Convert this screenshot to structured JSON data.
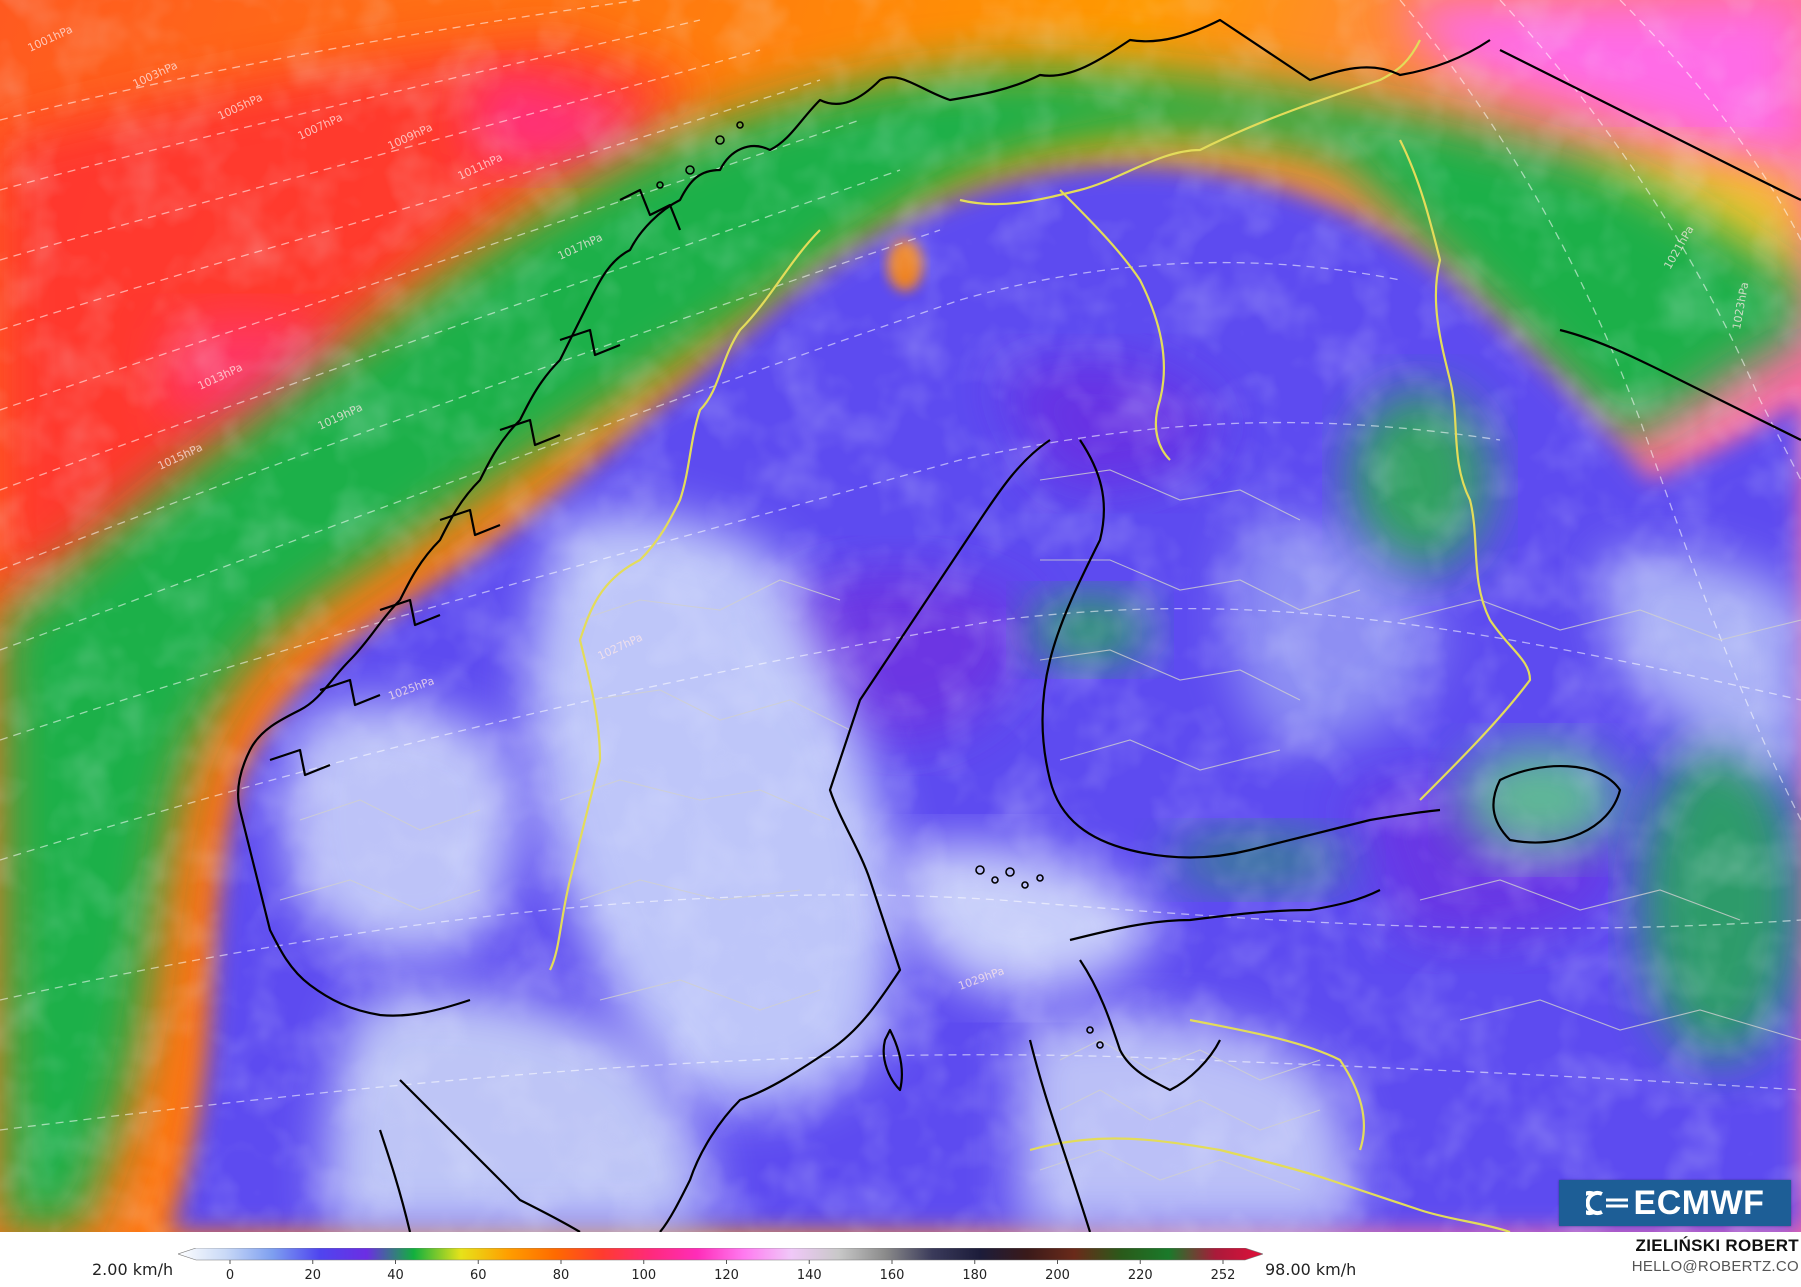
{
  "map": {
    "field": "wind speed",
    "units": "km/h",
    "model_logo": "ECMWF",
    "isobar_labels": [
      "1001hPa",
      "1003hPa",
      "1005hPa",
      "1007hPa",
      "1009hPa",
      "1011hPa",
      "1013hPa",
      "1015hPa",
      "1017hPa",
      "1019hPa",
      "1021hPa",
      "1023hPa",
      "1025hPa",
      "1027hPa",
      "1029hPa"
    ],
    "colors": {
      "calm": "#dbe7fb",
      "light": "#8aa8f0",
      "moderate": "#5a4ef0",
      "fresh": "#7a2fe8",
      "green": "#22b04a",
      "yellow": "#e8d81a",
      "orange": "#ff7a00",
      "red": "#ff3a3a",
      "magenta": "#ff2fa8",
      "pink": "#ff8af0",
      "border_country": "#e8e060",
      "coast": "#000000",
      "admin": "#bdbdbd"
    }
  },
  "colorbar": {
    "min_label": "2.00 km/h",
    "max_label": "98.00 km/h",
    "ticks": [
      "0",
      "20",
      "40",
      "60",
      "80",
      "100",
      "120",
      "140",
      "160",
      "180",
      "200",
      "220",
      "252"
    ],
    "stops": [
      "#ffffff",
      "#c9d9f6",
      "#7e9ff0",
      "#4f45ef",
      "#6b2ee3",
      "#12b03e",
      "#e7e21a",
      "#ff9e00",
      "#ff6a00",
      "#ff3b2f",
      "#ff2a7a",
      "#ff2cb8",
      "#ff7af0",
      "#f0c8f8",
      "#c8c8c8",
      "#8a8a8a",
      "#3a3a5a",
      "#1c1c3a",
      "#3a1a1a",
      "#6a2a1a",
      "#2a5a1a",
      "#1a7a2a",
      "#aa1a3a",
      "#e0103a"
    ]
  },
  "author": {
    "name": "ZIELIŃSKI ROBERT",
    "email": "HELLO@ROBERTZ.CO"
  }
}
